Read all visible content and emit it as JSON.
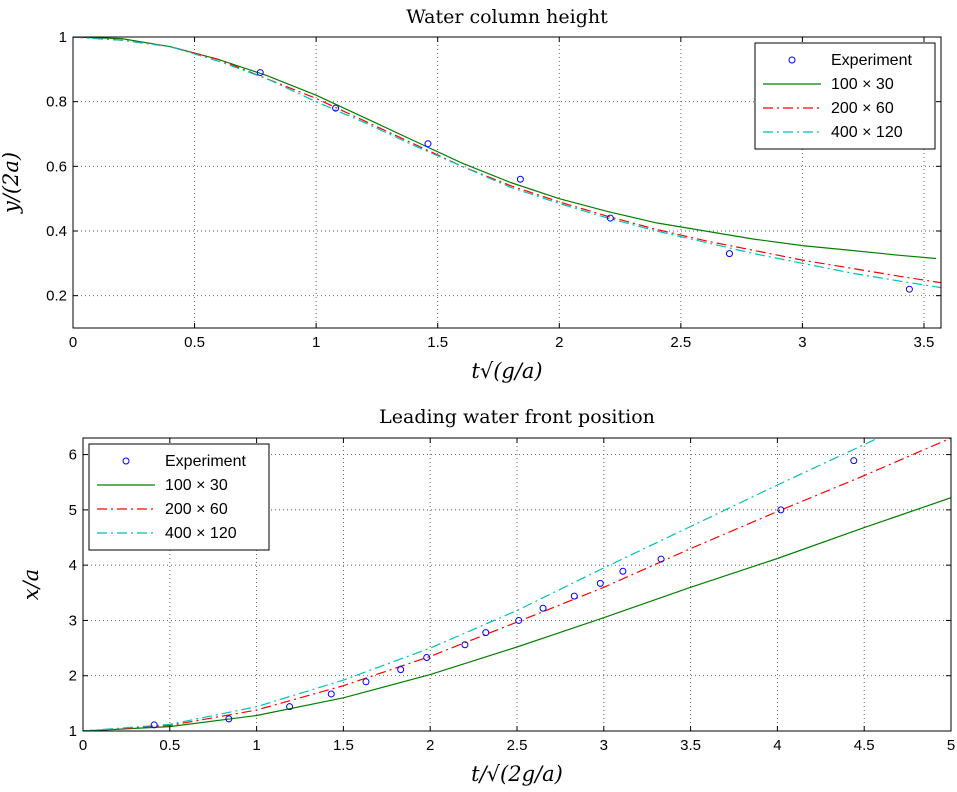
{
  "chart_data": [
    {
      "type": "line",
      "title": "Water column height",
      "xlabel": "t√(g/a)",
      "ylabel": "y/(2a)",
      "xlim": [
        0,
        3.57
      ],
      "ylim": [
        0.1,
        1.0
      ],
      "xticks": [
        "0",
        "0.5",
        "1",
        "1.5",
        "2",
        "2.5",
        "3",
        "3.5"
      ],
      "xtick_values": [
        0,
        0.5,
        1,
        1.5,
        2,
        2.5,
        3,
        3.5
      ],
      "yticks": [
        "0.2",
        "0.4",
        "0.6",
        "0.8",
        "1"
      ],
      "ytick_values": [
        0.2,
        0.4,
        0.6,
        0.8,
        1.0
      ],
      "grid": true,
      "legend_position": "top-right",
      "series": [
        {
          "name": "Experiment",
          "style": "markers",
          "color": "#0000ff",
          "x": [
            0.77,
            1.08,
            1.46,
            1.84,
            2.21,
            2.7,
            3.44
          ],
          "y": [
            0.89,
            0.78,
            0.67,
            0.56,
            0.44,
            0.33,
            0.22
          ]
        },
        {
          "name": "100 × 30",
          "style": "solid",
          "color": "#008000",
          "x": [
            0,
            0.2,
            0.4,
            0.6,
            0.8,
            1.0,
            1.2,
            1.4,
            1.6,
            1.8,
            2.0,
            2.2,
            2.4,
            2.6,
            2.8,
            3.0,
            3.2,
            3.4,
            3.55
          ],
          "y": [
            1.0,
            0.995,
            0.97,
            0.93,
            0.88,
            0.82,
            0.75,
            0.68,
            0.61,
            0.55,
            0.5,
            0.46,
            0.425,
            0.4,
            0.375,
            0.355,
            0.34,
            0.325,
            0.315
          ]
        },
        {
          "name": "200 × 60",
          "style": "dashdot",
          "color": "#ff0000",
          "x": [
            0,
            0.2,
            0.4,
            0.6,
            0.8,
            1.0,
            1.2,
            1.4,
            1.6,
            1.8,
            2.0,
            2.2,
            2.4,
            2.6,
            2.8,
            3.0,
            3.2,
            3.4,
            3.57
          ],
          "y": [
            1.0,
            0.99,
            0.97,
            0.93,
            0.87,
            0.81,
            0.74,
            0.67,
            0.6,
            0.54,
            0.49,
            0.445,
            0.405,
            0.37,
            0.34,
            0.31,
            0.285,
            0.26,
            0.24
          ]
        },
        {
          "name": "400 × 120",
          "style": "dashdot",
          "color": "#00bfbf",
          "x": [
            0,
            0.2,
            0.4,
            0.6,
            0.8,
            1.0,
            1.2,
            1.4,
            1.6,
            1.8,
            2.0,
            2.2,
            2.4,
            2.6,
            2.8,
            3.0,
            3.2,
            3.4,
            3.57
          ],
          "y": [
            1.0,
            0.99,
            0.97,
            0.925,
            0.87,
            0.8,
            0.735,
            0.665,
            0.6,
            0.535,
            0.485,
            0.44,
            0.4,
            0.365,
            0.33,
            0.3,
            0.27,
            0.245,
            0.225
          ]
        }
      ]
    },
    {
      "type": "line",
      "title": "Leading water front position",
      "xlabel": "t/√(2g/a)",
      "ylabel": "x/a",
      "xlim": [
        0,
        5
      ],
      "ylim": [
        1,
        6.3
      ],
      "xticks": [
        "0",
        "0.5",
        "1",
        "1.5",
        "2",
        "2.5",
        "3",
        "3.5",
        "4",
        "4.5",
        "5"
      ],
      "xtick_values": [
        0,
        0.5,
        1,
        1.5,
        2,
        2.5,
        3,
        3.5,
        4,
        4.5,
        5
      ],
      "yticks": [
        "1",
        "2",
        "3",
        "4",
        "5",
        "6"
      ],
      "ytick_values": [
        1,
        2,
        3,
        4,
        5,
        6
      ],
      "grid": true,
      "legend_position": "top-left",
      "series": [
        {
          "name": "Experiment",
          "style": "markers",
          "color": "#0000ff",
          "x": [
            0.41,
            0.84,
            1.19,
            1.43,
            1.63,
            1.83,
            1.98,
            2.2,
            2.32,
            2.51,
            2.65,
            2.83,
            2.98,
            3.11,
            3.33,
            4.02,
            4.44
          ],
          "y": [
            1.11,
            1.22,
            1.44,
            1.67,
            1.89,
            2.11,
            2.33,
            2.56,
            2.78,
            3.0,
            3.22,
            3.44,
            3.67,
            3.89,
            4.11,
            5.0,
            5.89
          ]
        },
        {
          "name": "100 × 30",
          "style": "solid",
          "color": "#008000",
          "x": [
            0,
            0.5,
            1.0,
            1.5,
            2.0,
            2.5,
            3.0,
            3.5,
            4.0,
            4.5,
            5.0
          ],
          "y": [
            1.0,
            1.08,
            1.28,
            1.6,
            2.02,
            2.52,
            3.05,
            3.6,
            4.12,
            4.68,
            5.22
          ]
        },
        {
          "name": "200 × 60",
          "style": "dashdot",
          "color": "#ff0000",
          "x": [
            0,
            0.5,
            1.0,
            1.5,
            2.0,
            2.5,
            3.0,
            3.5,
            4.0,
            4.5,
            5.0
          ],
          "y": [
            1.0,
            1.1,
            1.38,
            1.82,
            2.35,
            2.97,
            3.6,
            4.3,
            4.97,
            5.62,
            6.3
          ]
        },
        {
          "name": "400 × 120",
          "style": "dashdot",
          "color": "#00bfbf",
          "x": [
            0,
            0.5,
            1.0,
            1.5,
            2.0,
            2.5,
            3.0,
            3.5,
            4.0,
            4.5,
            4.58
          ],
          "y": [
            1.0,
            1.12,
            1.44,
            1.92,
            2.5,
            3.18,
            3.95,
            4.7,
            5.45,
            6.18,
            6.3
          ]
        }
      ]
    }
  ]
}
